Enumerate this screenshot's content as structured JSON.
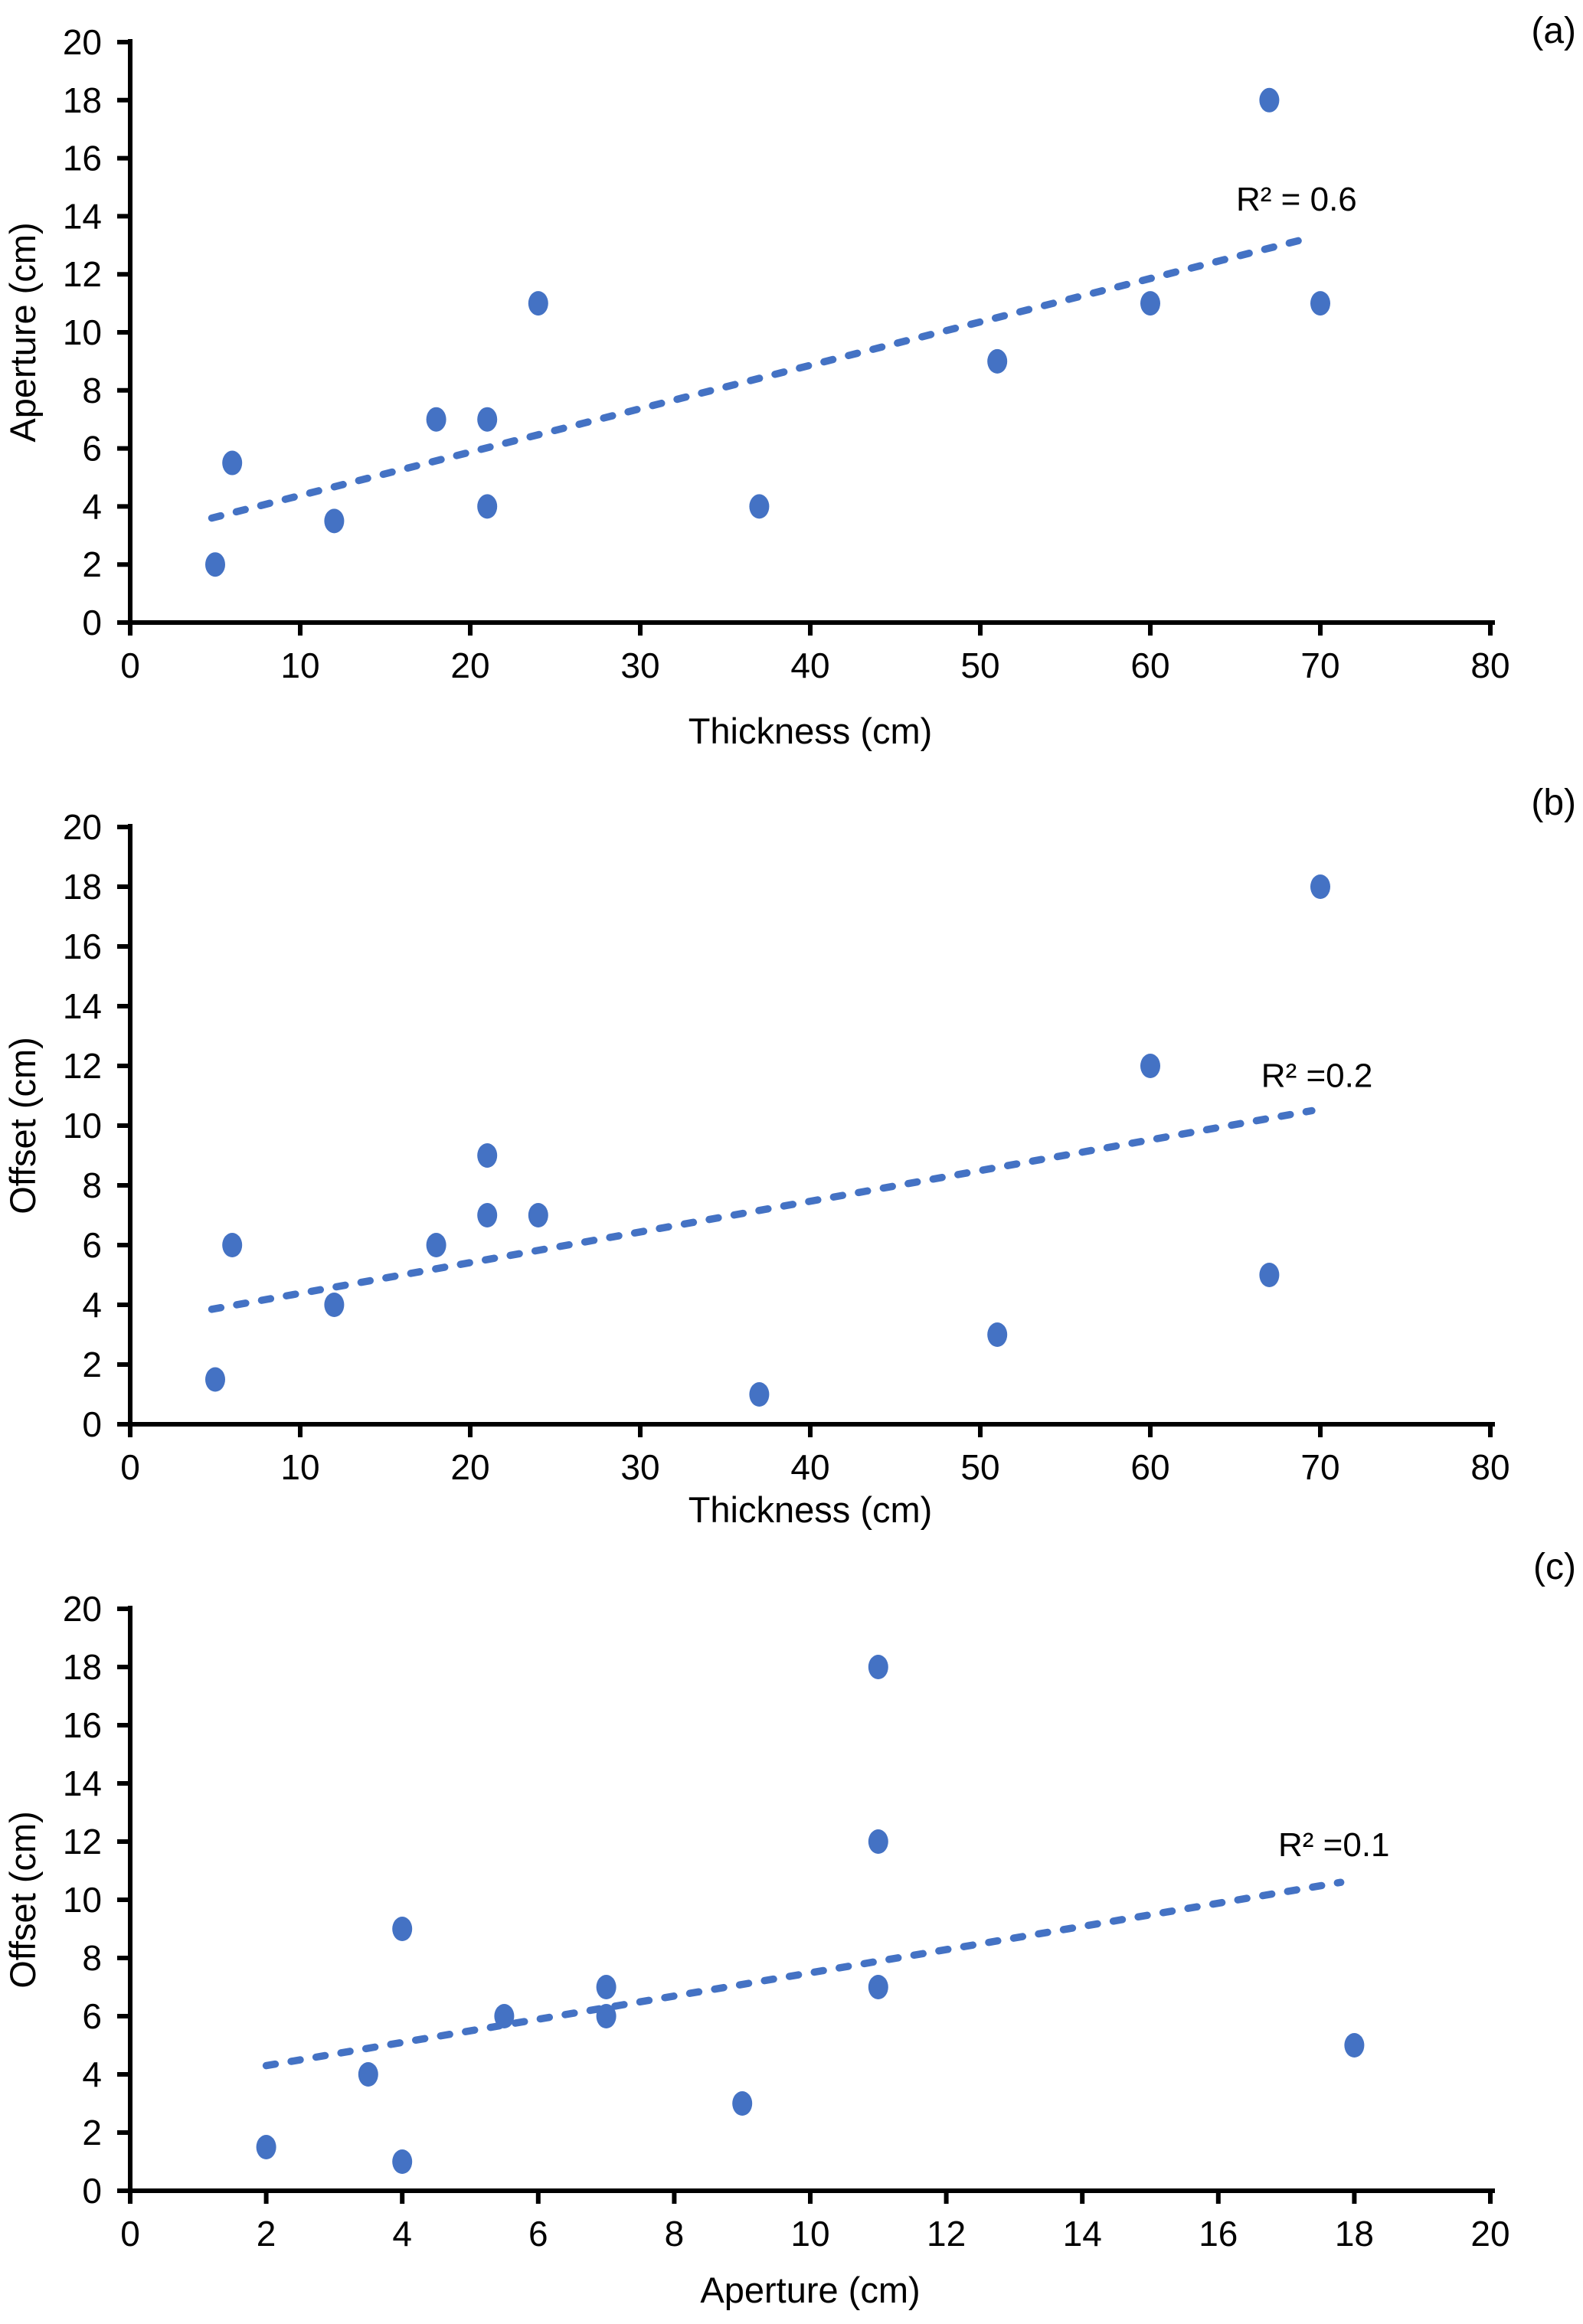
{
  "figure": {
    "background": "#ffffff",
    "accent_color": "#4472C4",
    "axis_color": "#000000",
    "text_color": "#000000"
  },
  "chart_data": [
    {
      "type": "scatter",
      "panel_label": "(a)",
      "title": "",
      "xlabel": "Thickness (cm)",
      "ylabel": "Aperture (cm)",
      "xlim": [
        0,
        80
      ],
      "ylim": [
        0,
        20
      ],
      "xticks": [
        0,
        10,
        20,
        30,
        40,
        50,
        60,
        70,
        80
      ],
      "yticks": [
        0,
        2,
        4,
        6,
        8,
        10,
        12,
        14,
        16,
        18,
        20
      ],
      "grid": false,
      "legend": null,
      "marker_shape": "circle",
      "points": [
        [
          5,
          2
        ],
        [
          6,
          5.5
        ],
        [
          12,
          3.5
        ],
        [
          18,
          7
        ],
        [
          21,
          4
        ],
        [
          21,
          7
        ],
        [
          24,
          11
        ],
        [
          37,
          4
        ],
        [
          51,
          9
        ],
        [
          60,
          11
        ],
        [
          67,
          18
        ],
        [
          70,
          11
        ]
      ],
      "trendline": {
        "style": "dashed",
        "start": {
          "x": 4.8,
          "y": 3.6
        },
        "end": {
          "x": 69,
          "y": 13.2
        }
      },
      "annotation": {
        "text": "R² = 0.6",
        "x": 68.6,
        "y": 14.2
      }
    },
    {
      "type": "scatter",
      "panel_label": "(b)",
      "title": "",
      "xlabel": "Thickness (cm)",
      "ylabel": "Offset (cm)",
      "xlim": [
        0,
        80
      ],
      "ylim": [
        0,
        20
      ],
      "xticks": [
        0,
        10,
        20,
        30,
        40,
        50,
        60,
        70,
        80
      ],
      "yticks": [
        0,
        2,
        4,
        6,
        8,
        10,
        12,
        14,
        16,
        18,
        20
      ],
      "grid": false,
      "legend": null,
      "marker_shape": "circle",
      "points": [
        [
          5,
          1.5
        ],
        [
          6,
          6
        ],
        [
          12,
          4
        ],
        [
          18,
          6
        ],
        [
          21,
          7
        ],
        [
          21,
          9
        ],
        [
          24,
          7
        ],
        [
          37,
          1
        ],
        [
          51,
          3
        ],
        [
          60,
          12
        ],
        [
          67,
          5
        ],
        [
          70,
          18
        ]
      ],
      "trendline": {
        "style": "dashed",
        "start": {
          "x": 4.8,
          "y": 3.85
        },
        "end": {
          "x": 69.5,
          "y": 10.5
        }
      },
      "annotation": {
        "text": "R² =0.2",
        "x": 69.8,
        "y": 11.3
      }
    },
    {
      "type": "scatter",
      "panel_label": "(c)",
      "title": "",
      "xlabel": "Aperture (cm)",
      "ylabel": "Offset (cm)",
      "xlim": [
        0,
        20
      ],
      "ylim": [
        0,
        20
      ],
      "xticks": [
        0,
        2,
        4,
        6,
        8,
        10,
        12,
        14,
        16,
        18,
        20
      ],
      "yticks": [
        0,
        2,
        4,
        6,
        8,
        10,
        12,
        14,
        16,
        18,
        20
      ],
      "grid": false,
      "legend": null,
      "marker_shape": "circle",
      "points": [
        [
          2,
          1.5
        ],
        [
          3.5,
          4
        ],
        [
          4,
          1
        ],
        [
          4,
          9
        ],
        [
          5.5,
          6
        ],
        [
          7,
          6
        ],
        [
          7,
          7
        ],
        [
          9,
          3
        ],
        [
          11,
          7
        ],
        [
          11,
          12
        ],
        [
          11,
          18
        ],
        [
          18,
          5
        ]
      ],
      "trendline": {
        "style": "dashed",
        "start": {
          "x": 2.0,
          "y": 4.3
        },
        "end": {
          "x": 17.8,
          "y": 10.6
        }
      },
      "annotation": {
        "text": "R² =0.1",
        "x": 17.7,
        "y": 11.5
      }
    }
  ]
}
